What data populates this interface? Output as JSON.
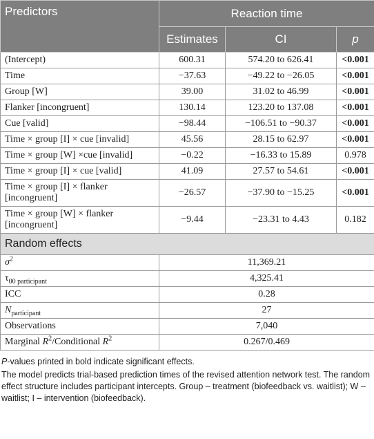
{
  "header": {
    "predictors": "Predictors",
    "group": "Reaction time",
    "columns": [
      [
        {
          "text": "Estimates"
        }
      ],
      [
        {
          "text": "CI"
        }
      ],
      [
        {
          "text": "p",
          "style": "i"
        }
      ]
    ]
  },
  "rows": [
    {
      "predictor": "(Intercept)",
      "estimate": "600.31",
      "ci": "574.20 to 626.41",
      "p": "<0.001",
      "bold": true
    },
    {
      "predictor": "Time",
      "estimate": "−37.63",
      "ci": "−49.22 to −26.05",
      "p": "<0.001",
      "bold": true
    },
    {
      "predictor": "Group [W]",
      "estimate": "39.00",
      "ci": "31.02 to 46.99",
      "p": "<0.001",
      "bold": true
    },
    {
      "predictor": "Flanker [incongruent]",
      "estimate": "130.14",
      "ci": "123.20 to 137.08",
      "p": "<0.001",
      "bold": true
    },
    {
      "predictor": "Cue [valid]",
      "estimate": "−98.44",
      "ci": "−106.51 to −90.37",
      "p": "<0.001",
      "bold": true
    },
    {
      "predictor": "Time × group [I] × cue [invalid]",
      "estimate": "45.56",
      "ci": "28.15 to 62.97",
      "p": "<0.001",
      "bold": true
    },
    {
      "predictor": "Time × group [W] ×cue [invalid]",
      "estimate": "−0.22",
      "ci": "−16.33 to 15.89",
      "p": "0.978",
      "bold": false
    },
    {
      "predictor": "Time × group [I] × cue [valid]",
      "estimate": "41.09",
      "ci": "27.57 to 54.61",
      "p": "<0.001",
      "bold": true
    },
    {
      "predictor": "Time × group [I] × flanker [incongruent]",
      "estimate": "−26.57",
      "ci": "−37.90 to −15.25",
      "p": "<0.001",
      "bold": true
    },
    {
      "predictor": "Time × group [W] × flanker [incongruent]",
      "estimate": "−9.44",
      "ci": "−23.31 to 4.43",
      "p": "0.182",
      "bold": false
    }
  ],
  "random_effects": {
    "title": "Random effects",
    "rows": [
      {
        "label": [
          {
            "text": "σ",
            "style": "i"
          },
          {
            "text": "2",
            "style": "sup"
          }
        ],
        "value": "11,369.21"
      },
      {
        "label": [
          {
            "text": "τ"
          },
          {
            "text": "00 participant",
            "style": "sub"
          }
        ],
        "value": "4,325.41"
      },
      {
        "label": [
          {
            "text": "ICC"
          }
        ],
        "value": "0.28"
      },
      {
        "label": [
          {
            "text": "N",
            "style": "i"
          },
          {
            "text": "participant",
            "style": "sub"
          }
        ],
        "value": "27"
      },
      {
        "label": [
          {
            "text": "Observations"
          }
        ],
        "value": "7,040"
      },
      {
        "label": [
          {
            "text": "Marginal "
          },
          {
            "text": "R",
            "style": "i"
          },
          {
            "text": "2",
            "style": "sup"
          },
          {
            "text": "/Conditional "
          },
          {
            "text": "R",
            "style": "i"
          },
          {
            "text": "2",
            "style": "sup"
          }
        ],
        "value": "0.267/0.469"
      }
    ]
  },
  "notes": [
    [
      {
        "text": "P",
        "style": "i"
      },
      {
        "text": "-values printed in bold indicate significant effects."
      }
    ],
    [
      {
        "text": "The model predicts trial-based prediction times of the revised attention network test. The random effect structure includes participant intercepts. Group – treatment (biofeedback vs. waitlist); W – waitlist; I – intervention (biofeedback)."
      }
    ]
  ]
}
